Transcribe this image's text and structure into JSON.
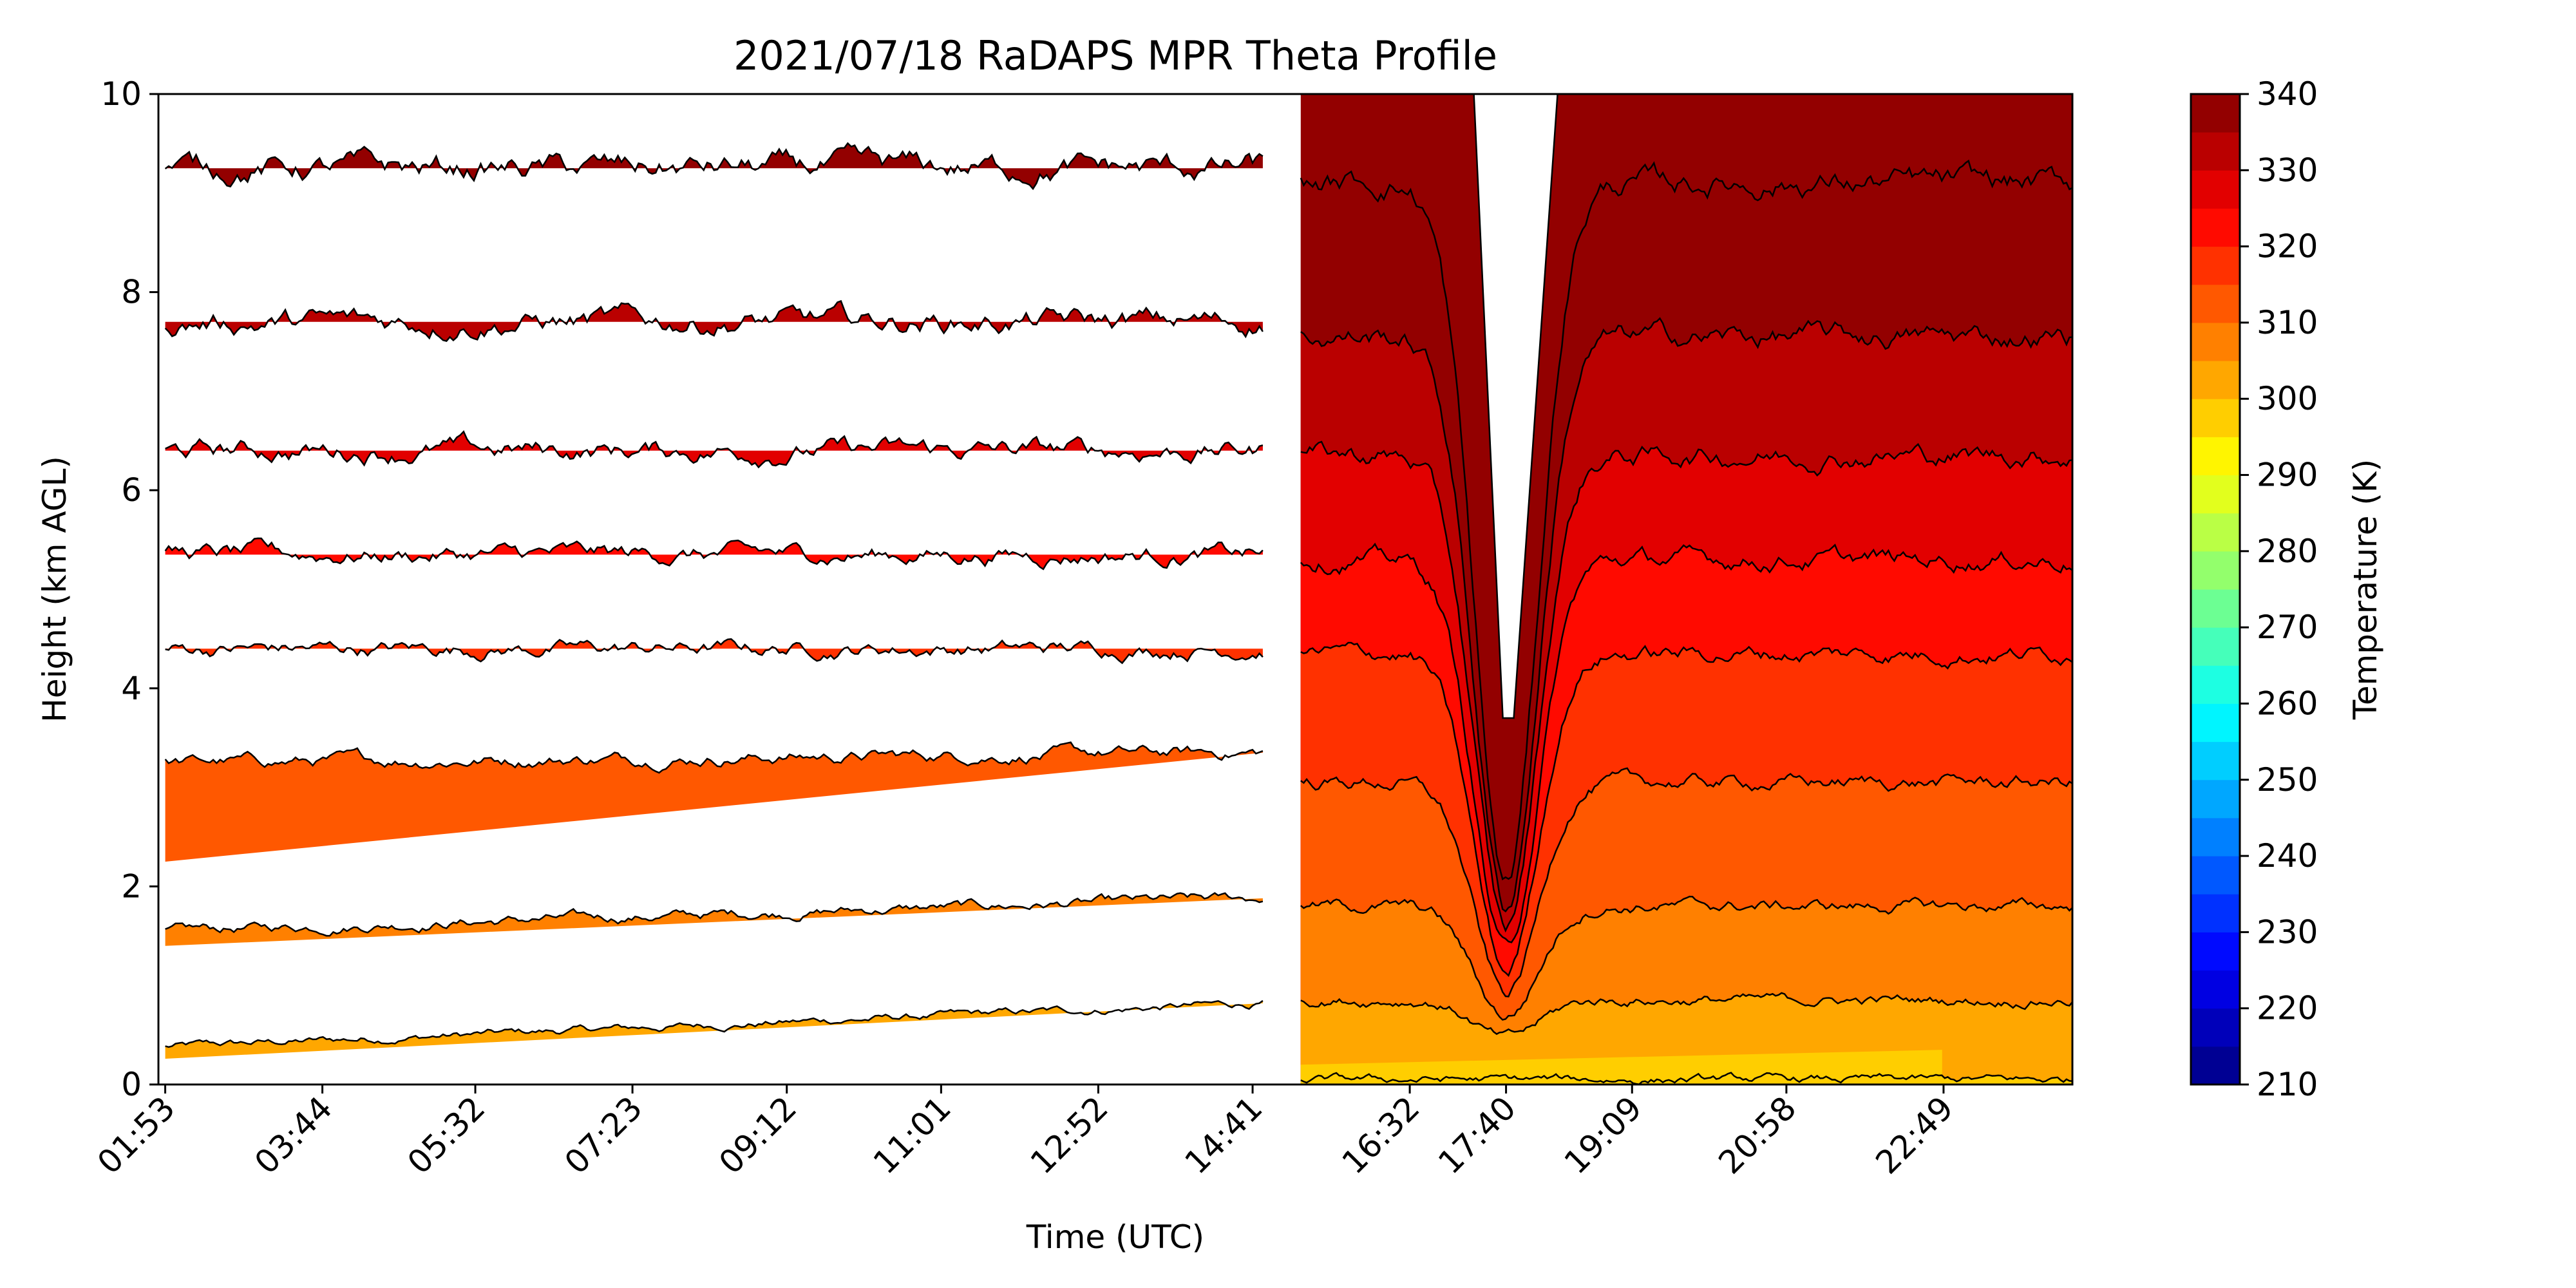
{
  "chart_data": {
    "type": "heatmap",
    "title": "2021/07/18 RaDAPS MPR Theta Profile",
    "xlabel": "Time (UTC)",
    "ylabel": "Height (km AGL)",
    "ylim": [
      0,
      10
    ],
    "yticks": [
      "0",
      "2",
      "4",
      "6",
      "8",
      "10"
    ],
    "xticks": [
      "01:53",
      "03:44",
      "05:32",
      "07:23",
      "09:12",
      "11:01",
      "12:52",
      "14:41",
      "16:32",
      "17:40",
      "19:09",
      "20:58",
      "22:49"
    ],
    "grid": false,
    "colorbar": {
      "label": "Temperature (K)",
      "range": [
        210,
        340
      ],
      "step": 5,
      "ticks": [
        "210",
        "220",
        "230",
        "240",
        "250",
        "260",
        "270",
        "280",
        "290",
        "300",
        "310",
        "320",
        "330",
        "340"
      ]
    },
    "contour_levels_K": [
      300,
      305,
      310,
      315,
      320,
      325,
      330,
      335,
      340
    ],
    "segment1": {
      "time_range": [
        "01:53",
        "14:41"
      ],
      "isentrope_heights_km": [
        {
          "theta_K": 305,
          "start": 0.38,
          "end": 0.82
        },
        {
          "theta_K": 310,
          "start": 1.55,
          "end": 1.88
        },
        {
          "theta_K": 315,
          "start": 3.25,
          "end": 3.35
        },
        {
          "theta_K": 320,
          "start": 4.4,
          "end": 4.4
        },
        {
          "theta_K": 325,
          "start": 5.35,
          "end": 5.35
        },
        {
          "theta_K": 330,
          "start": 6.4,
          "end": 6.4
        },
        {
          "theta_K": 335,
          "start": 7.7,
          "end": 7.7
        },
        {
          "theta_K": 340,
          "start": 9.25,
          "end": 9.25
        }
      ]
    },
    "segment2": {
      "time_range": [
        "15:15",
        "00:20"
      ],
      "isentrope_heights_km": [
        {
          "theta_K": 300,
          "value": 0.05
        },
        {
          "theta_K": 305,
          "value": 0.85
        },
        {
          "theta_K": 310,
          "value": 1.8
        },
        {
          "theta_K": 315,
          "value": 3.05
        },
        {
          "theta_K": 320,
          "value": 4.35
        },
        {
          "theta_K": 325,
          "value": 5.3
        },
        {
          "theta_K": 330,
          "value": 6.35
        },
        {
          "theta_K": 335,
          "value": 7.55
        },
        {
          "theta_K": 340,
          "value": 9.1
        }
      ],
      "storm_gap_time": "17:40"
    }
  }
}
